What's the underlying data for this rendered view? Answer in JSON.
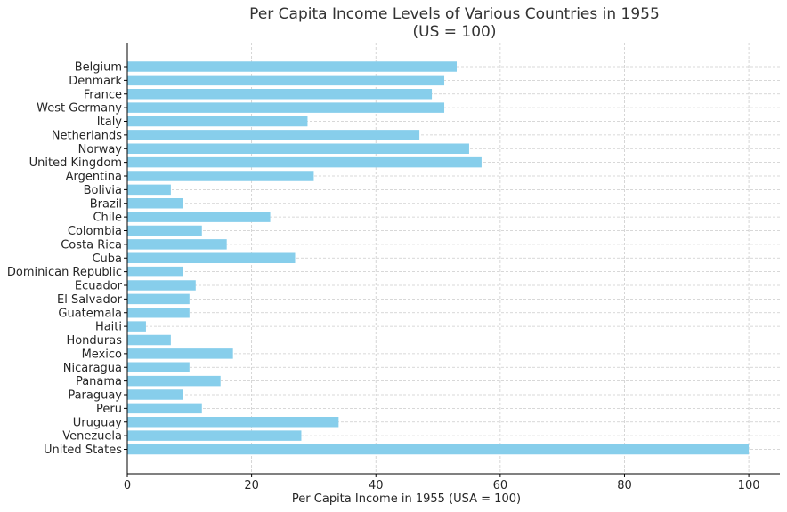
{
  "chart_data": {
    "type": "bar",
    "orientation": "horizontal",
    "title": "Per Capita Income Levels of Various Countries in 1955",
    "subtitle": "(US = 100)",
    "xlabel": "Per Capita Income in 1955 (USA = 100)",
    "ylabel": "",
    "xlim": [
      0,
      105
    ],
    "xticks": [
      0,
      20,
      40,
      60,
      80,
      100
    ],
    "grid": true,
    "bar_color": "#87CEEB",
    "categories": [
      "Belgium",
      "Denmark",
      "France",
      "West Germany",
      "Italy",
      "Netherlands",
      "Norway",
      "United Kingdom",
      "Argentina",
      "Bolivia",
      "Brazil",
      "Chile",
      "Colombia",
      "Costa Rica",
      "Cuba",
      "Dominican Republic",
      "Ecuador",
      "El Salvador",
      "Guatemala",
      "Haiti",
      "Honduras",
      "Mexico",
      "Nicaragua",
      "Panama",
      "Paraguay",
      "Peru",
      "Uruguay",
      "Venezuela",
      "United States"
    ],
    "values": [
      53,
      51,
      49,
      51,
      29,
      47,
      55,
      57,
      30,
      7,
      9,
      23,
      12,
      16,
      27,
      9,
      11,
      10,
      10,
      3,
      7,
      17,
      10,
      15,
      9,
      12,
      34,
      28,
      100
    ]
  }
}
